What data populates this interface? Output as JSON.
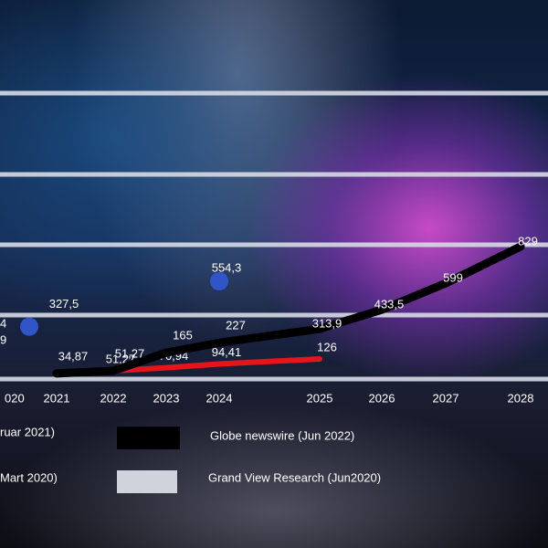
{
  "chart_data": {
    "type": "line",
    "categories": [
      "020",
      "2021",
      "2022",
      "2023",
      "2024",
      "2025",
      "2026",
      "2027",
      "2028"
    ],
    "series": [
      {
        "name": "ruar 2021)",
        "color": "#2f55c8",
        "values": [
          null,
          327.5,
          null,
          null,
          554.3,
          null,
          null,
          null,
          null
        ],
        "value_labels": [
          null,
          "327,5",
          null,
          null,
          "554,3",
          null,
          null,
          null,
          null
        ]
      },
      {
        "name": "Mart 2020)",
        "color": "#e8141b",
        "values": [
          null,
          null,
          51.27,
          70.94,
          94.41,
          126,
          null,
          null,
          null
        ],
        "value_labels": [
          null,
          null,
          "51,27",
          "70,94",
          "94,41",
          "126",
          null,
          null,
          null
        ]
      },
      {
        "name": "Globe newswire (Jun 2022)",
        "color": "#000000",
        "values": [
          null,
          34.87,
          51.27,
          165,
          227,
          313.9,
          433.5,
          599,
          829
        ],
        "value_labels": [
          null,
          "34,87",
          "51,27",
          "165",
          "227",
          "313,9",
          "433,5",
          "599",
          "829"
        ]
      },
      {
        "name": "Grand View Research (Jun2020)",
        "color": "#d0d3dc",
        "values": [
          null,
          null,
          null,
          null,
          null,
          null,
          null,
          null,
          null
        ]
      }
    ],
    "annotations": [
      "4",
      "9"
    ],
    "ylim": [
      0,
      2000
    ],
    "yticks": [
      0,
      400,
      800,
      1200,
      1600
    ],
    "grid": true
  }
}
